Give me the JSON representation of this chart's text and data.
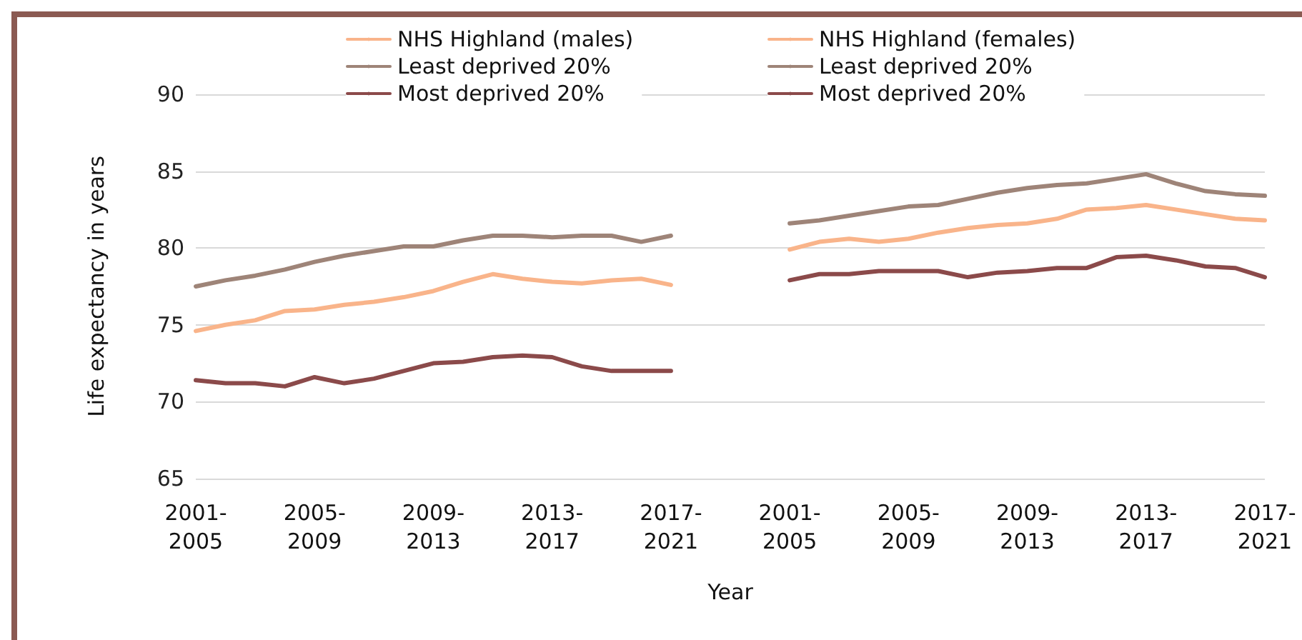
{
  "chart_data": {
    "type": "line",
    "xlabel": "Year",
    "ylabel": "Life expectancy in years",
    "categories": [
      "2001-\n2005",
      null,
      null,
      null,
      "2005-\n2009",
      null,
      null,
      null,
      "2009-\n2013",
      null,
      null,
      null,
      "2013-\n2017",
      null,
      null,
      null,
      "2017-\n2021",
      null,
      null,
      null,
      "2001-\n2005",
      null,
      null,
      null,
      "2005-\n2009",
      null,
      null,
      null,
      "2009-\n2013",
      null,
      null,
      null,
      "2013-\n2017",
      null,
      null,
      null,
      "2017-\n2021"
    ],
    "series": [
      {
        "name": "NHS Highland (males)",
        "color": "#f9b48a",
        "values": [
          74.6,
          75.0,
          75.3,
          75.9,
          76.0,
          76.3,
          76.5,
          76.8,
          77.2,
          77.8,
          78.3,
          78.0,
          77.8,
          77.7,
          77.9,
          78.0,
          77.6,
          null,
          null,
          null,
          null,
          null,
          null,
          null,
          null,
          null,
          null,
          null,
          null,
          null,
          null,
          null,
          null,
          null,
          null,
          null,
          null
        ]
      },
      {
        "name": "Least deprived 20%",
        "color": "#9e8478",
        "values": [
          77.5,
          77.9,
          78.2,
          78.6,
          79.1,
          79.5,
          79.8,
          80.1,
          80.1,
          80.5,
          80.8,
          80.8,
          80.7,
          80.8,
          80.8,
          80.4,
          80.8,
          null,
          null,
          null,
          null,
          null,
          null,
          null,
          null,
          null,
          null,
          null,
          null,
          null,
          null,
          null,
          null,
          null,
          null,
          null,
          null
        ]
      },
      {
        "name": "Most deprived 20%",
        "color": "#8b4a4a",
        "values": [
          71.4,
          71.2,
          71.2,
          71.0,
          71.6,
          71.2,
          71.5,
          72.0,
          72.5,
          72.6,
          72.9,
          73.0,
          72.9,
          72.3,
          72.0,
          72.0,
          72.0,
          null,
          null,
          null,
          null,
          null,
          null,
          null,
          null,
          null,
          null,
          null,
          null,
          null,
          null,
          null,
          null,
          null,
          null,
          null,
          null
        ]
      },
      {
        "name": "NHS Highland (females)",
        "color": "#f9b48a",
        "values": [
          null,
          null,
          null,
          null,
          null,
          null,
          null,
          null,
          null,
          null,
          null,
          null,
          null,
          null,
          null,
          null,
          null,
          null,
          null,
          null,
          79.9,
          80.4,
          80.6,
          80.4,
          80.6,
          81.0,
          81.3,
          81.5,
          81.6,
          81.9,
          82.5,
          82.6,
          82.8,
          82.5,
          82.2,
          81.9,
          81.8
        ]
      },
      {
        "name": "Least deprived 20%",
        "color": "#9e8478",
        "values": [
          null,
          null,
          null,
          null,
          null,
          null,
          null,
          null,
          null,
          null,
          null,
          null,
          null,
          null,
          null,
          null,
          null,
          null,
          null,
          null,
          81.6,
          81.8,
          82.1,
          82.4,
          82.7,
          82.8,
          83.2,
          83.6,
          83.9,
          84.1,
          84.2,
          84.5,
          84.8,
          84.2,
          83.7,
          83.5,
          83.4
        ]
      },
      {
        "name": "Most deprived 20%",
        "color": "#8b4a4a",
        "values": [
          null,
          null,
          null,
          null,
          null,
          null,
          null,
          null,
          null,
          null,
          null,
          null,
          null,
          null,
          null,
          null,
          null,
          null,
          null,
          null,
          77.9,
          78.3,
          78.3,
          78.5,
          78.5,
          78.5,
          78.1,
          78.4,
          78.5,
          78.7,
          78.7,
          79.4,
          79.5,
          79.2,
          78.8,
          78.7,
          78.1
        ]
      }
    ],
    "ylim": [
      65,
      90
    ],
    "yticks": [
      65,
      70,
      75,
      80,
      85,
      90
    ],
    "grid": "y",
    "legend": "top",
    "marker": "none",
    "line_style": "solid"
  }
}
